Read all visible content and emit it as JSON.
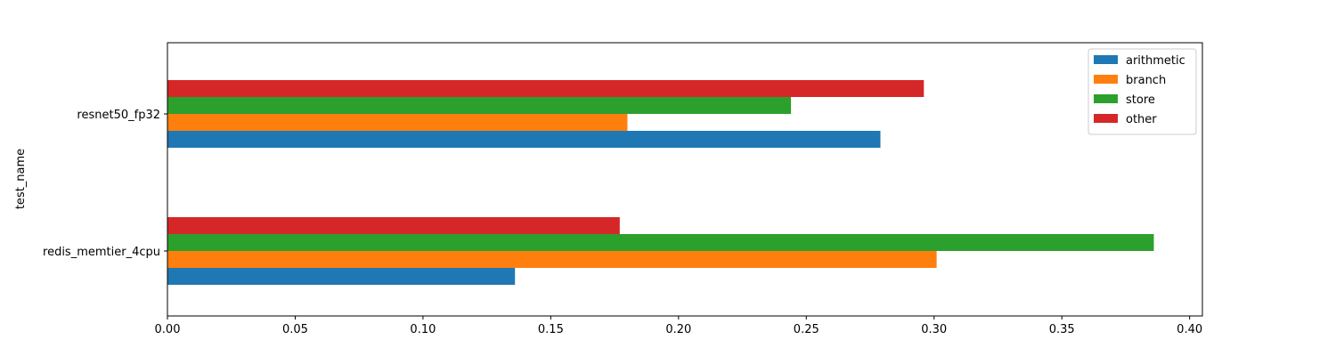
{
  "chart_data": {
    "type": "bar",
    "orientation": "horizontal",
    "title": "",
    "xlabel": "",
    "ylabel": "test_name",
    "categories": [
      "redis_memtier_4cpu",
      "resnet50_fp32"
    ],
    "xlim": [
      0.0,
      0.405
    ],
    "xticks": [
      "0.00",
      "0.05",
      "0.10",
      "0.15",
      "0.20",
      "0.25",
      "0.30",
      "0.35",
      "0.40"
    ],
    "grid": false,
    "legend_position": "top-right",
    "series": [
      {
        "name": "arithmetic",
        "color": "#1f77b4",
        "values": [
          0.136,
          0.279
        ]
      },
      {
        "name": "branch",
        "color": "#ff7f0e",
        "values": [
          0.301,
          0.18
        ]
      },
      {
        "name": "store",
        "color": "#2ca02c",
        "values": [
          0.386,
          0.244
        ]
      },
      {
        "name": "other",
        "color": "#d62728",
        "values": [
          0.177,
          0.296
        ]
      }
    ]
  }
}
